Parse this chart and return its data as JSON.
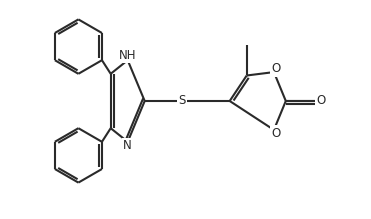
{
  "background_color": "#ffffff",
  "line_color": "#2a2a2a",
  "line_width": 1.5,
  "font_size": 8.5,
  "figsize": [
    3.71,
    2.19
  ],
  "dpi": 100,
  "xlim": [
    0.0,
    10.5
  ],
  "ylim": [
    0.8,
    7.2
  ]
}
